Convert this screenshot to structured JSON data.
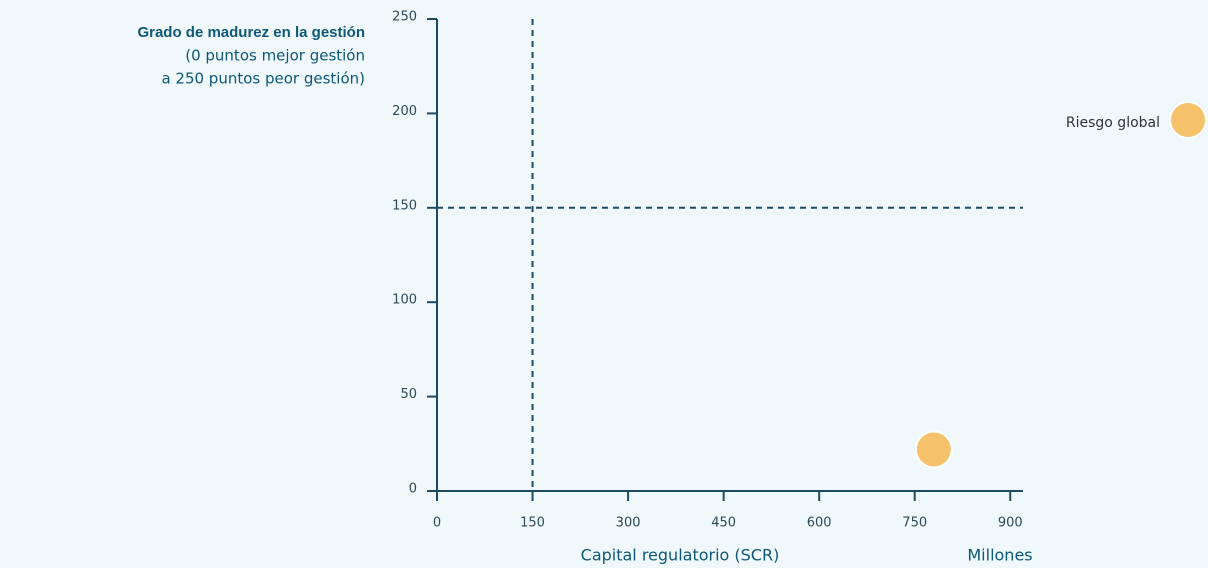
{
  "chart_data": {
    "type": "scatter",
    "title": "Grado de madurez en la gestión",
    "subtitle": [
      "(0 puntos mejor gestión",
      "a 250 puntos peor gestión)"
    ],
    "x_label": "Capital regulatorio (SCR)",
    "x_unit": "Millones",
    "series": [
      {
        "name": "Riesgo global",
        "color": "#f5c26b",
        "x": [
          780
        ],
        "values": [
          22
        ]
      }
    ],
    "xlim": [
      0,
      920
    ],
    "xticks": [
      0,
      150,
      300,
      450,
      600,
      750,
      900
    ],
    "ylim": [
      0,
      250
    ],
    "yticks": [
      0,
      50,
      100,
      150,
      200,
      250
    ],
    "vlines": [
      150
    ],
    "hlines": [
      150
    ],
    "axis_color": "#1c4b64"
  }
}
